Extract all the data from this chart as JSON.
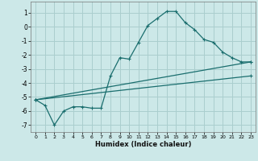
{
  "xlabel": "Humidex (Indice chaleur)",
  "background_color": "#cce8e8",
  "grid_color": "#aacece",
  "line_color": "#1a6e6e",
  "xlim": [
    -0.5,
    23.5
  ],
  "ylim": [
    -7.5,
    1.8
  ],
  "yticks": [
    1,
    0,
    -1,
    -2,
    -3,
    -4,
    -5,
    -6,
    -7
  ],
  "xticks": [
    0,
    1,
    2,
    3,
    4,
    5,
    6,
    7,
    8,
    9,
    10,
    11,
    12,
    13,
    14,
    15,
    16,
    17,
    18,
    19,
    20,
    21,
    22,
    23
  ],
  "series1_x": [
    0,
    1,
    2,
    3,
    4,
    5,
    6,
    7,
    8,
    9,
    10,
    11,
    12,
    13,
    14,
    15,
    16,
    17,
    18,
    19,
    20,
    21,
    22,
    23
  ],
  "series1_y": [
    -5.2,
    -5.6,
    -7.0,
    -6.0,
    -5.7,
    -5.7,
    -5.8,
    -5.8,
    -3.5,
    -2.2,
    -2.3,
    -1.1,
    0.1,
    0.6,
    1.1,
    1.1,
    0.3,
    -0.2,
    -0.9,
    -1.1,
    -1.8,
    -2.2,
    -2.5,
    -2.5
  ],
  "series2_x": [
    0,
    23
  ],
  "series2_y": [
    -5.2,
    -2.5
  ],
  "series3_x": [
    0,
    23
  ],
  "series3_y": [
    -5.2,
    -3.5
  ]
}
